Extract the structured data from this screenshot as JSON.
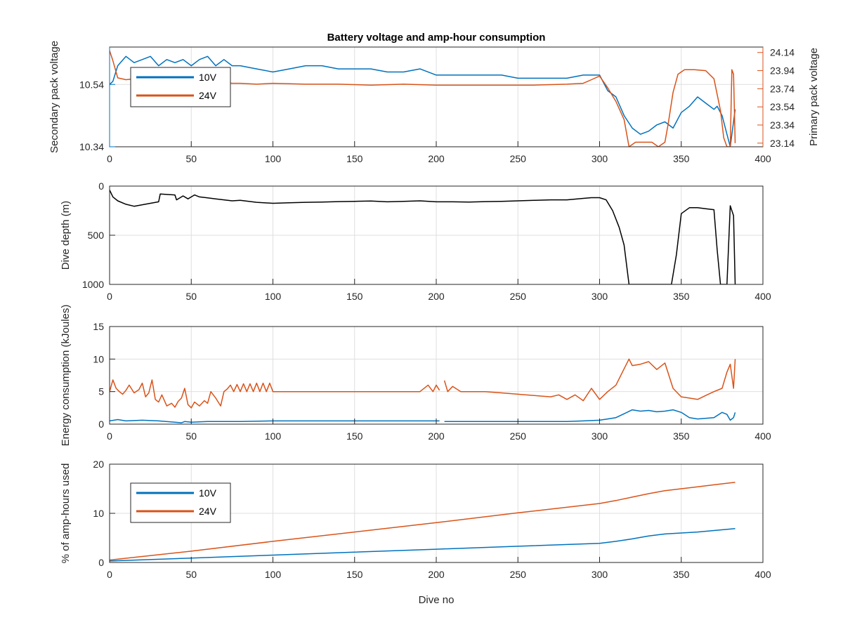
{
  "colors": {
    "series_10v": "#0072BD",
    "series_24v": "#D95319",
    "depth": "#000000",
    "axis": "#262626",
    "grid": "#dfdfdf"
  },
  "chart_data": [
    {
      "type": "line",
      "title": "Battery voltage and amp-hour consumption",
      "xlabel": "",
      "ylabel": "Secondary pack voltage",
      "ylabel_right": "Primary pack voltage",
      "xlim": [
        0,
        400
      ],
      "xticks": [
        "0",
        "50",
        "100",
        "150",
        "200",
        "250",
        "300",
        "350",
        "400"
      ],
      "ylim": [
        10.34,
        10.66
      ],
      "yticks": [
        10.34,
        10.54
      ],
      "ytick_labels": [
        "10.34",
        "10.54"
      ],
      "ylim_right": [
        23.1,
        24.2
      ],
      "yticks_right": [
        23.14,
        23.34,
        23.54,
        23.74,
        23.94,
        24.14
      ],
      "ytick_labels_right": [
        "23.14",
        "23.34",
        "23.54",
        "23.74",
        "23.94",
        "24.14"
      ],
      "grid": true,
      "legend": {
        "placement": "top-left",
        "entries": [
          "10V",
          "24V"
        ]
      },
      "series": [
        {
          "name": "10V",
          "axis": "left",
          "color": "#0072BD",
          "x": [
            0,
            2,
            5,
            10,
            15,
            20,
            25,
            30,
            35,
            40,
            45,
            50,
            55,
            60,
            65,
            70,
            75,
            80,
            90,
            100,
            110,
            120,
            130,
            140,
            150,
            160,
            170,
            180,
            190,
            200,
            210,
            220,
            230,
            240,
            250,
            260,
            270,
            280,
            290,
            295,
            300,
            305,
            310,
            315,
            320,
            325,
            330,
            335,
            340,
            345,
            350,
            355,
            360,
            365,
            370,
            372,
            375,
            378,
            380,
            383
          ],
          "y": [
            10.54,
            10.55,
            10.6,
            10.63,
            10.61,
            10.62,
            10.63,
            10.6,
            10.62,
            10.61,
            10.62,
            10.6,
            10.62,
            10.63,
            10.6,
            10.62,
            10.6,
            10.6,
            10.59,
            10.58,
            10.59,
            10.6,
            10.6,
            10.59,
            10.59,
            10.59,
            10.58,
            10.58,
            10.59,
            10.57,
            10.57,
            10.57,
            10.57,
            10.57,
            10.56,
            10.56,
            10.56,
            10.56,
            10.57,
            10.57,
            10.57,
            10.52,
            10.5,
            10.44,
            10.4,
            10.38,
            10.39,
            10.41,
            10.42,
            10.4,
            10.45,
            10.47,
            10.5,
            10.48,
            10.46,
            10.47,
            10.44,
            10.38,
            10.34,
            10.46
          ]
        },
        {
          "name": "24V",
          "axis": "right",
          "color": "#D95319",
          "x": [
            0,
            2,
            5,
            10,
            15,
            20,
            25,
            30,
            35,
            40,
            45,
            50,
            55,
            60,
            65,
            70,
            75,
            80,
            90,
            100,
            120,
            140,
            160,
            180,
            200,
            220,
            240,
            260,
            280,
            290,
            295,
            300,
            305,
            310,
            315,
            318,
            322,
            327,
            332,
            336,
            340,
            342,
            345,
            348,
            352,
            358,
            365,
            370,
            374,
            376,
            378,
            380,
            381,
            382,
            383
          ],
          "y": [
            24.16,
            24.05,
            23.86,
            23.84,
            23.85,
            23.83,
            23.84,
            23.85,
            23.84,
            23.83,
            23.84,
            23.83,
            23.82,
            23.82,
            23.82,
            23.81,
            23.8,
            23.8,
            23.79,
            23.8,
            23.79,
            23.79,
            23.78,
            23.79,
            23.78,
            23.78,
            23.78,
            23.78,
            23.79,
            23.8,
            23.84,
            23.88,
            23.75,
            23.6,
            23.4,
            23.1,
            23.15,
            23.15,
            23.15,
            23.1,
            23.15,
            23.35,
            23.7,
            23.9,
            23.95,
            23.95,
            23.94,
            23.85,
            23.5,
            23.2,
            23.1,
            23.1,
            23.95,
            23.9,
            23.14
          ]
        }
      ]
    },
    {
      "type": "line",
      "title": "",
      "xlabel": "",
      "ylabel": "Dive depth (m)",
      "xlim": [
        0,
        400
      ],
      "xticks": [
        "0",
        "50",
        "100",
        "150",
        "200",
        "250",
        "300",
        "350",
        "400"
      ],
      "ylim": [
        0,
        1000
      ],
      "y_reversed": true,
      "yticks": [
        0,
        500,
        1000
      ],
      "ytick_labels": [
        "0",
        "500",
        "1000"
      ],
      "grid": true,
      "series": [
        {
          "axis": "left",
          "color": "#000000",
          "x": [
            0,
            2,
            5,
            10,
            15,
            20,
            25,
            30,
            31,
            35,
            40,
            41,
            45,
            48,
            50,
            52,
            55,
            60,
            65,
            70,
            75,
            80,
            90,
            100,
            110,
            120,
            130,
            140,
            150,
            160,
            170,
            180,
            190,
            200,
            210,
            220,
            230,
            240,
            250,
            260,
            270,
            280,
            290,
            295,
            300,
            304,
            308,
            312,
            315,
            318,
            325,
            330,
            335,
            340,
            344,
            347,
            350,
            355,
            360,
            365,
            370,
            372,
            374,
            375,
            378,
            380,
            381,
            382,
            383
          ],
          "y": [
            40,
            110,
            150,
            185,
            205,
            190,
            175,
            160,
            80,
            85,
            90,
            140,
            100,
            130,
            110,
            90,
            110,
            120,
            130,
            140,
            150,
            145,
            165,
            175,
            170,
            165,
            162,
            158,
            155,
            152,
            160,
            155,
            150,
            160,
            160,
            162,
            158,
            155,
            150,
            145,
            140,
            140,
            125,
            118,
            118,
            140,
            250,
            420,
            600,
            1000,
            1000,
            1000,
            1000,
            1000,
            1000,
            700,
            280,
            220,
            220,
            230,
            240,
            650,
            1000,
            1000,
            1000,
            200,
            250,
            300,
            1000
          ]
        }
      ]
    },
    {
      "type": "line",
      "title": "",
      "xlabel": "",
      "ylabel": "Energy consumption (kJoules)",
      "xlim": [
        0,
        400
      ],
      "xticks": [
        "0",
        "50",
        "100",
        "150",
        "200",
        "250",
        "300",
        "350",
        "400"
      ],
      "ylim": [
        0,
        15
      ],
      "yticks": [
        0,
        5,
        10,
        15
      ],
      "ytick_labels": [
        "0",
        "5",
        "10",
        "15"
      ],
      "grid": true,
      "series": [
        {
          "color": "#D95319",
          "gap_after_x": 202,
          "x": [
            0,
            2,
            4,
            6,
            8,
            10,
            12,
            15,
            18,
            20,
            22,
            24,
            26,
            28,
            30,
            32,
            35,
            38,
            40,
            42,
            44,
            46,
            48,
            50,
            52,
            55,
            58,
            60,
            62,
            65,
            68,
            70,
            72,
            74,
            76,
            78,
            80,
            82,
            84,
            86,
            88,
            90,
            92,
            94,
            96,
            98,
            100,
            110,
            120,
            130,
            140,
            150,
            160,
            170,
            180,
            190,
            195,
            198,
            200,
            202,
            205,
            207,
            210,
            215,
            220,
            225,
            230,
            240,
            250,
            260,
            270,
            275,
            280,
            285,
            290,
            295,
            300,
            305,
            310,
            315,
            318,
            320,
            325,
            330,
            335,
            340,
            345,
            350,
            355,
            360,
            365,
            370,
            375,
            378,
            380,
            382,
            383
          ],
          "y": [
            5.0,
            6.8,
            5.5,
            5.0,
            4.6,
            5.2,
            6.0,
            4.8,
            5.3,
            6.3,
            4.2,
            4.8,
            6.8,
            3.8,
            3.4,
            4.5,
            2.8,
            3.2,
            2.6,
            3.5,
            4.0,
            5.5,
            3.0,
            2.5,
            3.4,
            2.8,
            3.6,
            3.2,
            5.0,
            4.0,
            2.8,
            5.0,
            5.4,
            6.0,
            5.0,
            6.1,
            5.0,
            6.2,
            5.0,
            6.2,
            5.0,
            6.3,
            5.0,
            6.3,
            5.0,
            6.3,
            5.0,
            5.0,
            5.0,
            5.0,
            5.0,
            5.0,
            5.0,
            5.0,
            5.0,
            5.0,
            6.0,
            5.0,
            6.0,
            5.2,
            6.7,
            5.0,
            5.8,
            5.0,
            5.0,
            5.0,
            5.0,
            4.8,
            4.6,
            4.4,
            4.2,
            4.5,
            3.8,
            4.5,
            3.6,
            5.5,
            3.8,
            5.0,
            6.0,
            8.5,
            10.0,
            9.0,
            9.2,
            9.6,
            8.4,
            9.4,
            5.5,
            4.2,
            4.0,
            3.8,
            4.4,
            5.0,
            5.5,
            8.0,
            9.2,
            5.5,
            10.0
          ]
        },
        {
          "color": "#0072BD",
          "gap_after_x": 202,
          "x": [
            0,
            5,
            10,
            20,
            30,
            40,
            44,
            46,
            50,
            60,
            80,
            100,
            120,
            140,
            160,
            180,
            200,
            202,
            205,
            220,
            240,
            260,
            280,
            290,
            300,
            305,
            310,
            315,
            320,
            325,
            330,
            335,
            340,
            345,
            350,
            355,
            360,
            370,
            375,
            378,
            380,
            382,
            383
          ],
          "y": [
            0.5,
            0.7,
            0.5,
            0.6,
            0.5,
            0.3,
            0.2,
            0.4,
            0.3,
            0.4,
            0.4,
            0.5,
            0.5,
            0.5,
            0.5,
            0.5,
            0.5,
            0.5,
            0.4,
            0.4,
            0.4,
            0.4,
            0.4,
            0.5,
            0.6,
            0.8,
            1.0,
            1.6,
            2.2,
            2.0,
            2.1,
            1.9,
            2.0,
            2.2,
            1.8,
            1.0,
            0.8,
            1.0,
            1.8,
            1.5,
            0.6,
            1.0,
            1.8
          ]
        }
      ]
    },
    {
      "type": "line",
      "title": "",
      "xlabel": "Dive no",
      "ylabel": "% of amp-hours used",
      "xlim": [
        0,
        400
      ],
      "xticks": [
        "0",
        "50",
        "100",
        "150",
        "200",
        "250",
        "300",
        "350",
        "400"
      ],
      "ylim": [
        0,
        20
      ],
      "yticks": [
        0,
        10,
        20
      ],
      "ytick_labels": [
        "0",
        "10",
        "20"
      ],
      "grid": true,
      "legend": {
        "placement": "top-left",
        "entries": [
          "10V",
          "24V"
        ]
      },
      "series": [
        {
          "name": "10V",
          "color": "#0072BD",
          "x": [
            0,
            50,
            100,
            150,
            200,
            250,
            300,
            310,
            320,
            330,
            340,
            350,
            360,
            370,
            380,
            383
          ],
          "y": [
            0.3,
            0.9,
            1.5,
            2.1,
            2.7,
            3.3,
            3.9,
            4.3,
            4.8,
            5.4,
            5.8,
            6.0,
            6.2,
            6.5,
            6.8,
            6.9
          ]
        },
        {
          "name": "24V",
          "color": "#D95319",
          "x": [
            0,
            50,
            100,
            150,
            200,
            250,
            300,
            310,
            320,
            330,
            340,
            350,
            360,
            370,
            380,
            383
          ],
          "y": [
            0.5,
            2.3,
            4.3,
            6.2,
            8.1,
            10.1,
            12.0,
            12.6,
            13.3,
            14.0,
            14.6,
            15.0,
            15.4,
            15.8,
            16.2,
            16.3
          ]
        }
      ]
    }
  ]
}
